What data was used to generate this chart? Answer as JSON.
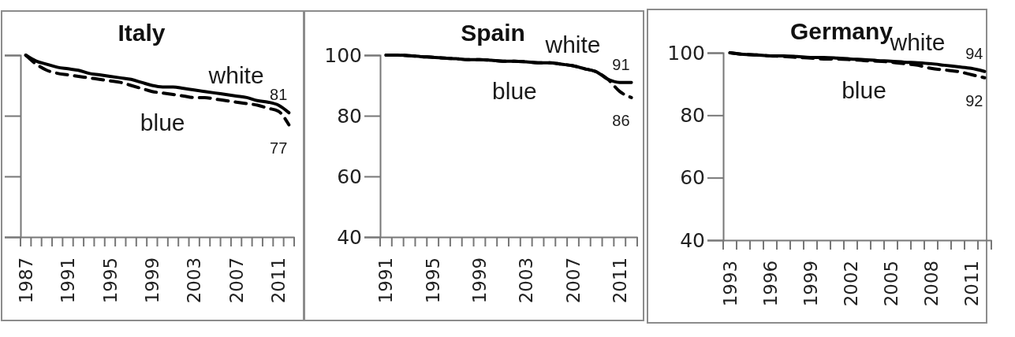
{
  "chart_data": [
    {
      "type": "line",
      "title": "Italy",
      "categories": [
        "1987",
        null,
        null,
        null,
        "1991",
        null,
        null,
        null,
        "1995",
        null,
        null,
        null,
        "1999",
        null,
        null,
        null,
        "2003",
        null,
        null,
        null,
        "2007",
        null,
        null,
        null,
        "2011",
        null
      ],
      "ylim": [
        40,
        100
      ],
      "yticks": [
        40,
        60,
        80,
        100
      ],
      "tick_labels": "x",
      "grid": false,
      "marker": "none",
      "series": [
        {
          "name": "white",
          "color": "#000000",
          "line_style": "solid",
          "values": [
            100,
            98,
            97,
            96,
            95.5,
            95,
            94,
            93.5,
            93,
            92.5,
            92,
            91,
            90,
            89.5,
            89.5,
            89,
            88.5,
            88,
            87.5,
            87,
            86.5,
            86,
            85,
            84.5,
            83.5,
            81
          ],
          "value_labels": [
            null,
            null,
            null,
            null,
            null,
            null,
            null,
            null,
            null,
            null,
            null,
            null,
            null,
            null,
            null,
            null,
            null,
            null,
            null,
            null,
            null,
            null,
            null,
            null,
            null,
            "81"
          ]
        },
        {
          "name": "blue",
          "color": "#000000",
          "line_style": "dashed",
          "values": [
            100,
            97,
            95,
            94,
            93.5,
            93,
            92.5,
            92,
            91.5,
            91,
            90,
            89,
            88,
            87.5,
            87,
            86.5,
            86,
            86,
            85.5,
            85,
            84.5,
            84,
            83.5,
            82.5,
            81.5,
            77
          ],
          "value_labels": [
            null,
            null,
            null,
            null,
            null,
            null,
            null,
            null,
            null,
            null,
            null,
            null,
            null,
            null,
            null,
            null,
            null,
            null,
            null,
            null,
            null,
            null,
            null,
            null,
            null,
            "77"
          ]
        }
      ]
    },
    {
      "type": "line",
      "title": "Spain",
      "categories": [
        "1991",
        null,
        null,
        null,
        "1995",
        null,
        null,
        null,
        "1999",
        null,
        null,
        null,
        "2003",
        null,
        null,
        null,
        "2007",
        null,
        null,
        null,
        "2011",
        null
      ],
      "ylim": [
        40,
        100
      ],
      "yticks": [
        40,
        60,
        80,
        100
      ],
      "grid": false,
      "marker": "none",
      "series": [
        {
          "name": "white",
          "color": "#000000",
          "line_style": "solid",
          "values": [
            100,
            100,
            99.8,
            99.5,
            99.3,
            99,
            98.8,
            98.5,
            98.5,
            98.3,
            98,
            98,
            97.8,
            97.5,
            97.5,
            97,
            96.5,
            95.5,
            94.5,
            92,
            91,
            91
          ],
          "value_labels": [
            null,
            null,
            null,
            null,
            null,
            null,
            null,
            null,
            null,
            null,
            null,
            null,
            null,
            null,
            null,
            null,
            null,
            null,
            null,
            null,
            null,
            "91"
          ]
        },
        {
          "name": "blue",
          "color": "#000000",
          "line_style": "dashed",
          "values": [
            100,
            100,
            99.8,
            99.5,
            99.3,
            99,
            98.8,
            98.5,
            98.5,
            98.3,
            98,
            98,
            97.8,
            97.5,
            97.5,
            97,
            96.5,
            95.5,
            94.5,
            92,
            88,
            86
          ],
          "value_labels": [
            null,
            null,
            null,
            null,
            null,
            null,
            null,
            null,
            null,
            null,
            null,
            null,
            null,
            null,
            null,
            null,
            null,
            null,
            null,
            null,
            null,
            "86"
          ]
        }
      ]
    },
    {
      "type": "line",
      "title": "Germany",
      "categories": [
        "1993",
        null,
        null,
        "1996",
        null,
        null,
        "1999",
        null,
        null,
        "2002",
        null,
        null,
        "2005",
        null,
        null,
        "2008",
        null,
        null,
        "2011",
        null
      ],
      "ylim": [
        40,
        100
      ],
      "yticks": [
        40,
        60,
        80,
        100
      ],
      "grid": false,
      "marker": "none",
      "series": [
        {
          "name": "white",
          "color": "#000000",
          "line_style": "solid",
          "values": [
            100,
            99.5,
            99.3,
            99,
            99,
            98.8,
            98.5,
            98.5,
            98.3,
            98,
            97.8,
            97.5,
            97.3,
            97,
            96.8,
            96.5,
            96,
            95.5,
            95,
            94
          ],
          "value_labels": [
            null,
            null,
            null,
            null,
            null,
            null,
            null,
            null,
            null,
            null,
            null,
            null,
            null,
            null,
            null,
            null,
            null,
            null,
            null,
            "94"
          ]
        },
        {
          "name": "blue",
          "color": "#000000",
          "line_style": "dashed",
          "values": [
            100,
            99.5,
            99.3,
            99,
            98.8,
            98.5,
            98.3,
            98,
            98,
            97.8,
            97.5,
            97.3,
            97,
            96.5,
            96,
            95,
            94.5,
            94,
            93,
            92
          ],
          "value_labels": [
            null,
            null,
            null,
            null,
            null,
            null,
            null,
            null,
            null,
            null,
            null,
            null,
            null,
            null,
            null,
            null,
            null,
            null,
            null,
            "92"
          ]
        }
      ]
    }
  ]
}
